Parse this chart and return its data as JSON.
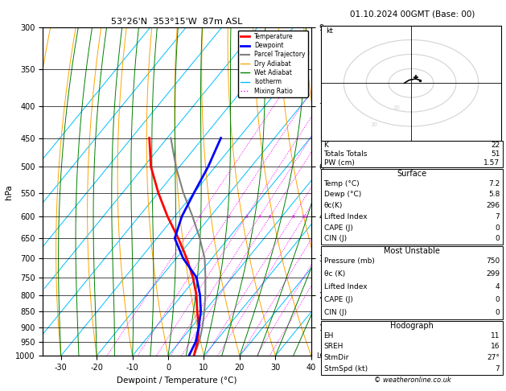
{
  "title_left": "53°26'N  353°15'W  87m ASL",
  "title_right": "01.10.2024 00GMT (Base: 00)",
  "xlabel": "Dewpoint / Temperature (°C)",
  "ylabel_left": "hPa",
  "xlim": [
    -35,
    40
  ],
  "pressure_levels": [
    300,
    350,
    400,
    450,
    500,
    550,
    600,
    650,
    700,
    750,
    800,
    850,
    900,
    950,
    1000
  ],
  "mixing_ratio_values": [
    1,
    2,
    3,
    4,
    5,
    8,
    10,
    15,
    20,
    25
  ],
  "temperature_profile": {
    "temp": [
      7.2,
      5.0,
      2.0,
      -2.0,
      -6.0,
      -11.0,
      -17.0,
      -24.0,
      -32.0,
      -40.0,
      -48.0,
      -55.0
    ],
    "pressure": [
      1000,
      950,
      900,
      850,
      800,
      750,
      700,
      650,
      600,
      550,
      500,
      450
    ]
  },
  "dewpoint_profile": {
    "dewp": [
      5.8,
      4.5,
      2.0,
      -1.0,
      -5.0,
      -10.0,
      -18.0,
      -25.0,
      -28.0,
      -30.0,
      -32.0,
      -35.0
    ],
    "pressure": [
      1000,
      950,
      900,
      850,
      800,
      750,
      700,
      650,
      600,
      550,
      500,
      450
    ]
  },
  "parcel_profile": {
    "temp": [
      7.2,
      5.5,
      3.0,
      0.0,
      -3.5,
      -7.5,
      -12.0,
      -18.0,
      -25.0,
      -33.0,
      -41.0,
      -49.0
    ],
    "pressure": [
      1000,
      950,
      900,
      850,
      800,
      750,
      700,
      650,
      600,
      550,
      500,
      450
    ]
  },
  "background_color": "#ffffff",
  "temp_color": "#ff0000",
  "dewp_color": "#0000ff",
  "parcel_color": "#808080",
  "dry_adiabat_color": "#ffa500",
  "wet_adiabat_color": "#008000",
  "isotherm_color": "#00bfff",
  "mixing_ratio_color": "#ff00ff",
  "sounding_lw": 2.0,
  "parcel_lw": 1.5,
  "bg_line_lw": 0.7,
  "skew": 45,
  "stats": {
    "K": 22,
    "Totals Totals": 51,
    "PW (cm)": 1.57,
    "Surface Temp": 7.2,
    "Surface Dewp": 5.8,
    "theta_e_K": 296,
    "Lifted Index": 7,
    "CAPE": 0,
    "CIN": 0,
    "MU Pressure": 750,
    "MU theta_e": 299,
    "MU Lifted Index": 4,
    "MU CAPE": 0,
    "MU CIN": 0,
    "EH": 11,
    "SREH": 16,
    "StmDir": "27°",
    "StmSpd": 7
  },
  "copyright": "© weatheronline.co.uk"
}
